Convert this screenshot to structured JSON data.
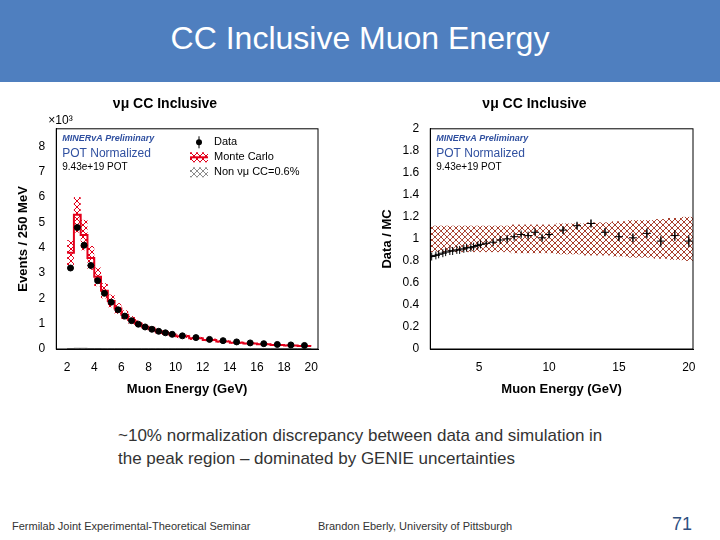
{
  "slide": {
    "title": "CC Inclusive Muon Energy",
    "caption": "~10% normalization discrepancy between data and simulation in the peak region – dominated by GENIE uncertainties",
    "footer_left": "Fermilab Joint Experimental-Theoretical Seminar",
    "footer_center": "Brandon Eberly, University of Pittsburgh",
    "page": "71"
  },
  "chart_data": [
    {
      "type": "histogram",
      "title": "νμ CC Inclusive",
      "x_label": "Muon Energy (GeV)",
      "y_label": "Events / 250 MeV",
      "y_factor": "×10³",
      "preliminary": "MINERvA Preliminary",
      "notes": [
        "POT Normalized",
        "9.43e+19 POT"
      ],
      "bins": [
        2,
        2.5,
        3,
        3.5,
        4,
        4.5,
        5,
        5.5,
        6,
        6.5,
        7,
        7.5,
        8,
        8.5,
        9,
        9.5,
        10,
        11,
        12,
        13,
        14,
        15,
        16,
        17,
        18,
        19,
        20
      ],
      "series": [
        {
          "name": "Data",
          "color": "#000000",
          "marker": "circle",
          "values": [
            3.2,
            4.8,
            4.1,
            3.3,
            2.7,
            2.2,
            1.85,
            1.55,
            1.3,
            1.12,
            0.98,
            0.87,
            0.78,
            0.7,
            0.64,
            0.58,
            0.52,
            0.45,
            0.38,
            0.33,
            0.28,
            0.24,
            0.21,
            0.18,
            0.16,
            0.14
          ],
          "errors": [
            0.06,
            0.07,
            0.06,
            0.05,
            0.05,
            0.04,
            0.04,
            0.04,
            0.03,
            0.03,
            0.03,
            0.03,
            0.03,
            0.03,
            0.02,
            0.02,
            0.02,
            0.02,
            0.02,
            0.02,
            0.02,
            0.02,
            0.02,
            0.02,
            0.02,
            0.02
          ]
        },
        {
          "name": "Monte Carlo",
          "color": "#e3001b",
          "line_style": "solid",
          "values": [
            3.8,
            5.3,
            4.5,
            3.6,
            2.85,
            2.3,
            1.9,
            1.6,
            1.35,
            1.15,
            1.0,
            0.88,
            0.78,
            0.7,
            0.63,
            0.57,
            0.5,
            0.42,
            0.36,
            0.3,
            0.25,
            0.22,
            0.19,
            0.16,
            0.14,
            0.12
          ],
          "errors": [
            0.5,
            0.7,
            0.6,
            0.47,
            0.37,
            0.3,
            0.25,
            0.21,
            0.18,
            0.15,
            0.13,
            0.11,
            0.1,
            0.09,
            0.08,
            0.07,
            0.07,
            0.06,
            0.05,
            0.04,
            0.04,
            0.03,
            0.03,
            0.03,
            0.03,
            0.03
          ]
        },
        {
          "name": "Non νμ CC=0.6%",
          "color": "#8c8c8c",
          "values": [
            0.02,
            0.03,
            0.03,
            0.02,
            0.02,
            0.01,
            0.01,
            0.01,
            0.01,
            0.01,
            0.01,
            0.01,
            0.01,
            0.01,
            0.01,
            0.01,
            0.01,
            0.01,
            0.01,
            0.01,
            0.01,
            0.01,
            0.01,
            0.01,
            0.01,
            0.01
          ]
        }
      ],
      "xlim": [
        1.2,
        20.5
      ],
      "xticks": [
        2,
        4,
        6,
        8,
        10,
        12,
        14,
        16,
        18,
        20
      ],
      "ylim": [
        0,
        8.7
      ],
      "yticks": [
        0,
        1,
        2,
        3,
        4,
        5,
        6,
        7,
        8
      ],
      "legend": "top-right",
      "grid": false
    },
    {
      "type": "scatter",
      "title": "νμ CC Inclusive",
      "x_label": "Muon Energy (GeV)",
      "y_label": "Data / MC",
      "preliminary": "MINERvA Preliminary",
      "notes": [
        "POT Normalized",
        "9.43e+19 POT"
      ],
      "x": [
        1.6,
        1.9,
        2.1,
        2.4,
        2.6,
        2.9,
        3.1,
        3.4,
        3.6,
        3.9,
        4.1,
        4.4,
        4.6,
        4.9,
        5.1,
        5.5,
        6,
        6.5,
        7,
        7.5,
        8,
        8.5,
        9,
        9.5,
        10,
        11,
        12,
        13,
        14,
        15,
        16,
        17,
        18,
        19,
        20
      ],
      "values": [
        0.84,
        0.85,
        0.86,
        0.87,
        0.88,
        0.89,
        0.89,
        0.9,
        0.9,
        0.91,
        0.92,
        0.92,
        0.93,
        0.94,
        0.95,
        0.96,
        0.97,
        0.99,
        1.0,
        1.02,
        1.04,
        1.03,
        1.06,
        1.01,
        1.04,
        1.08,
        1.12,
        1.14,
        1.06,
        1.02,
        1.01,
        1.05,
        0.98,
        1.03,
        0.98
      ],
      "errors": [
        0.01,
        0.01,
        0.01,
        0.01,
        0.01,
        0.01,
        0.01,
        0.01,
        0.01,
        0.01,
        0.01,
        0.01,
        0.01,
        0.01,
        0.01,
        0.015,
        0.015,
        0.015,
        0.02,
        0.02,
        0.02,
        0.02,
        0.025,
        0.025,
        0.025,
        0.03,
        0.03,
        0.035,
        0.035,
        0.04,
        0.04,
        0.045,
        0.05,
        0.05,
        0.055
      ],
      "color": "#000000",
      "marker": "cross",
      "mc_band": {
        "color": "#a8402e",
        "center": 1,
        "errors": [
          0.12,
          0.12,
          0.12,
          0.12,
          0.12,
          0.12,
          0.12,
          0.12,
          0.12,
          0.12,
          0.12,
          0.12,
          0.12,
          0.12,
          0.12,
          0.12,
          0.12,
          0.12,
          0.12,
          0.13,
          0.13,
          0.13,
          0.13,
          0.13,
          0.13,
          0.14,
          0.14,
          0.15,
          0.15,
          0.16,
          0.17,
          0.17,
          0.18,
          0.19,
          0.2
        ]
      },
      "xlim": [
        1.5,
        20.3
      ],
      "xticks": [
        5,
        10,
        15,
        20
      ],
      "ylim": [
        0,
        2
      ],
      "yticks": [
        0,
        0.2,
        0.4,
        0.6,
        0.8,
        1,
        1.2,
        1.4,
        1.6,
        1.8,
        2
      ],
      "grid": false
    }
  ]
}
